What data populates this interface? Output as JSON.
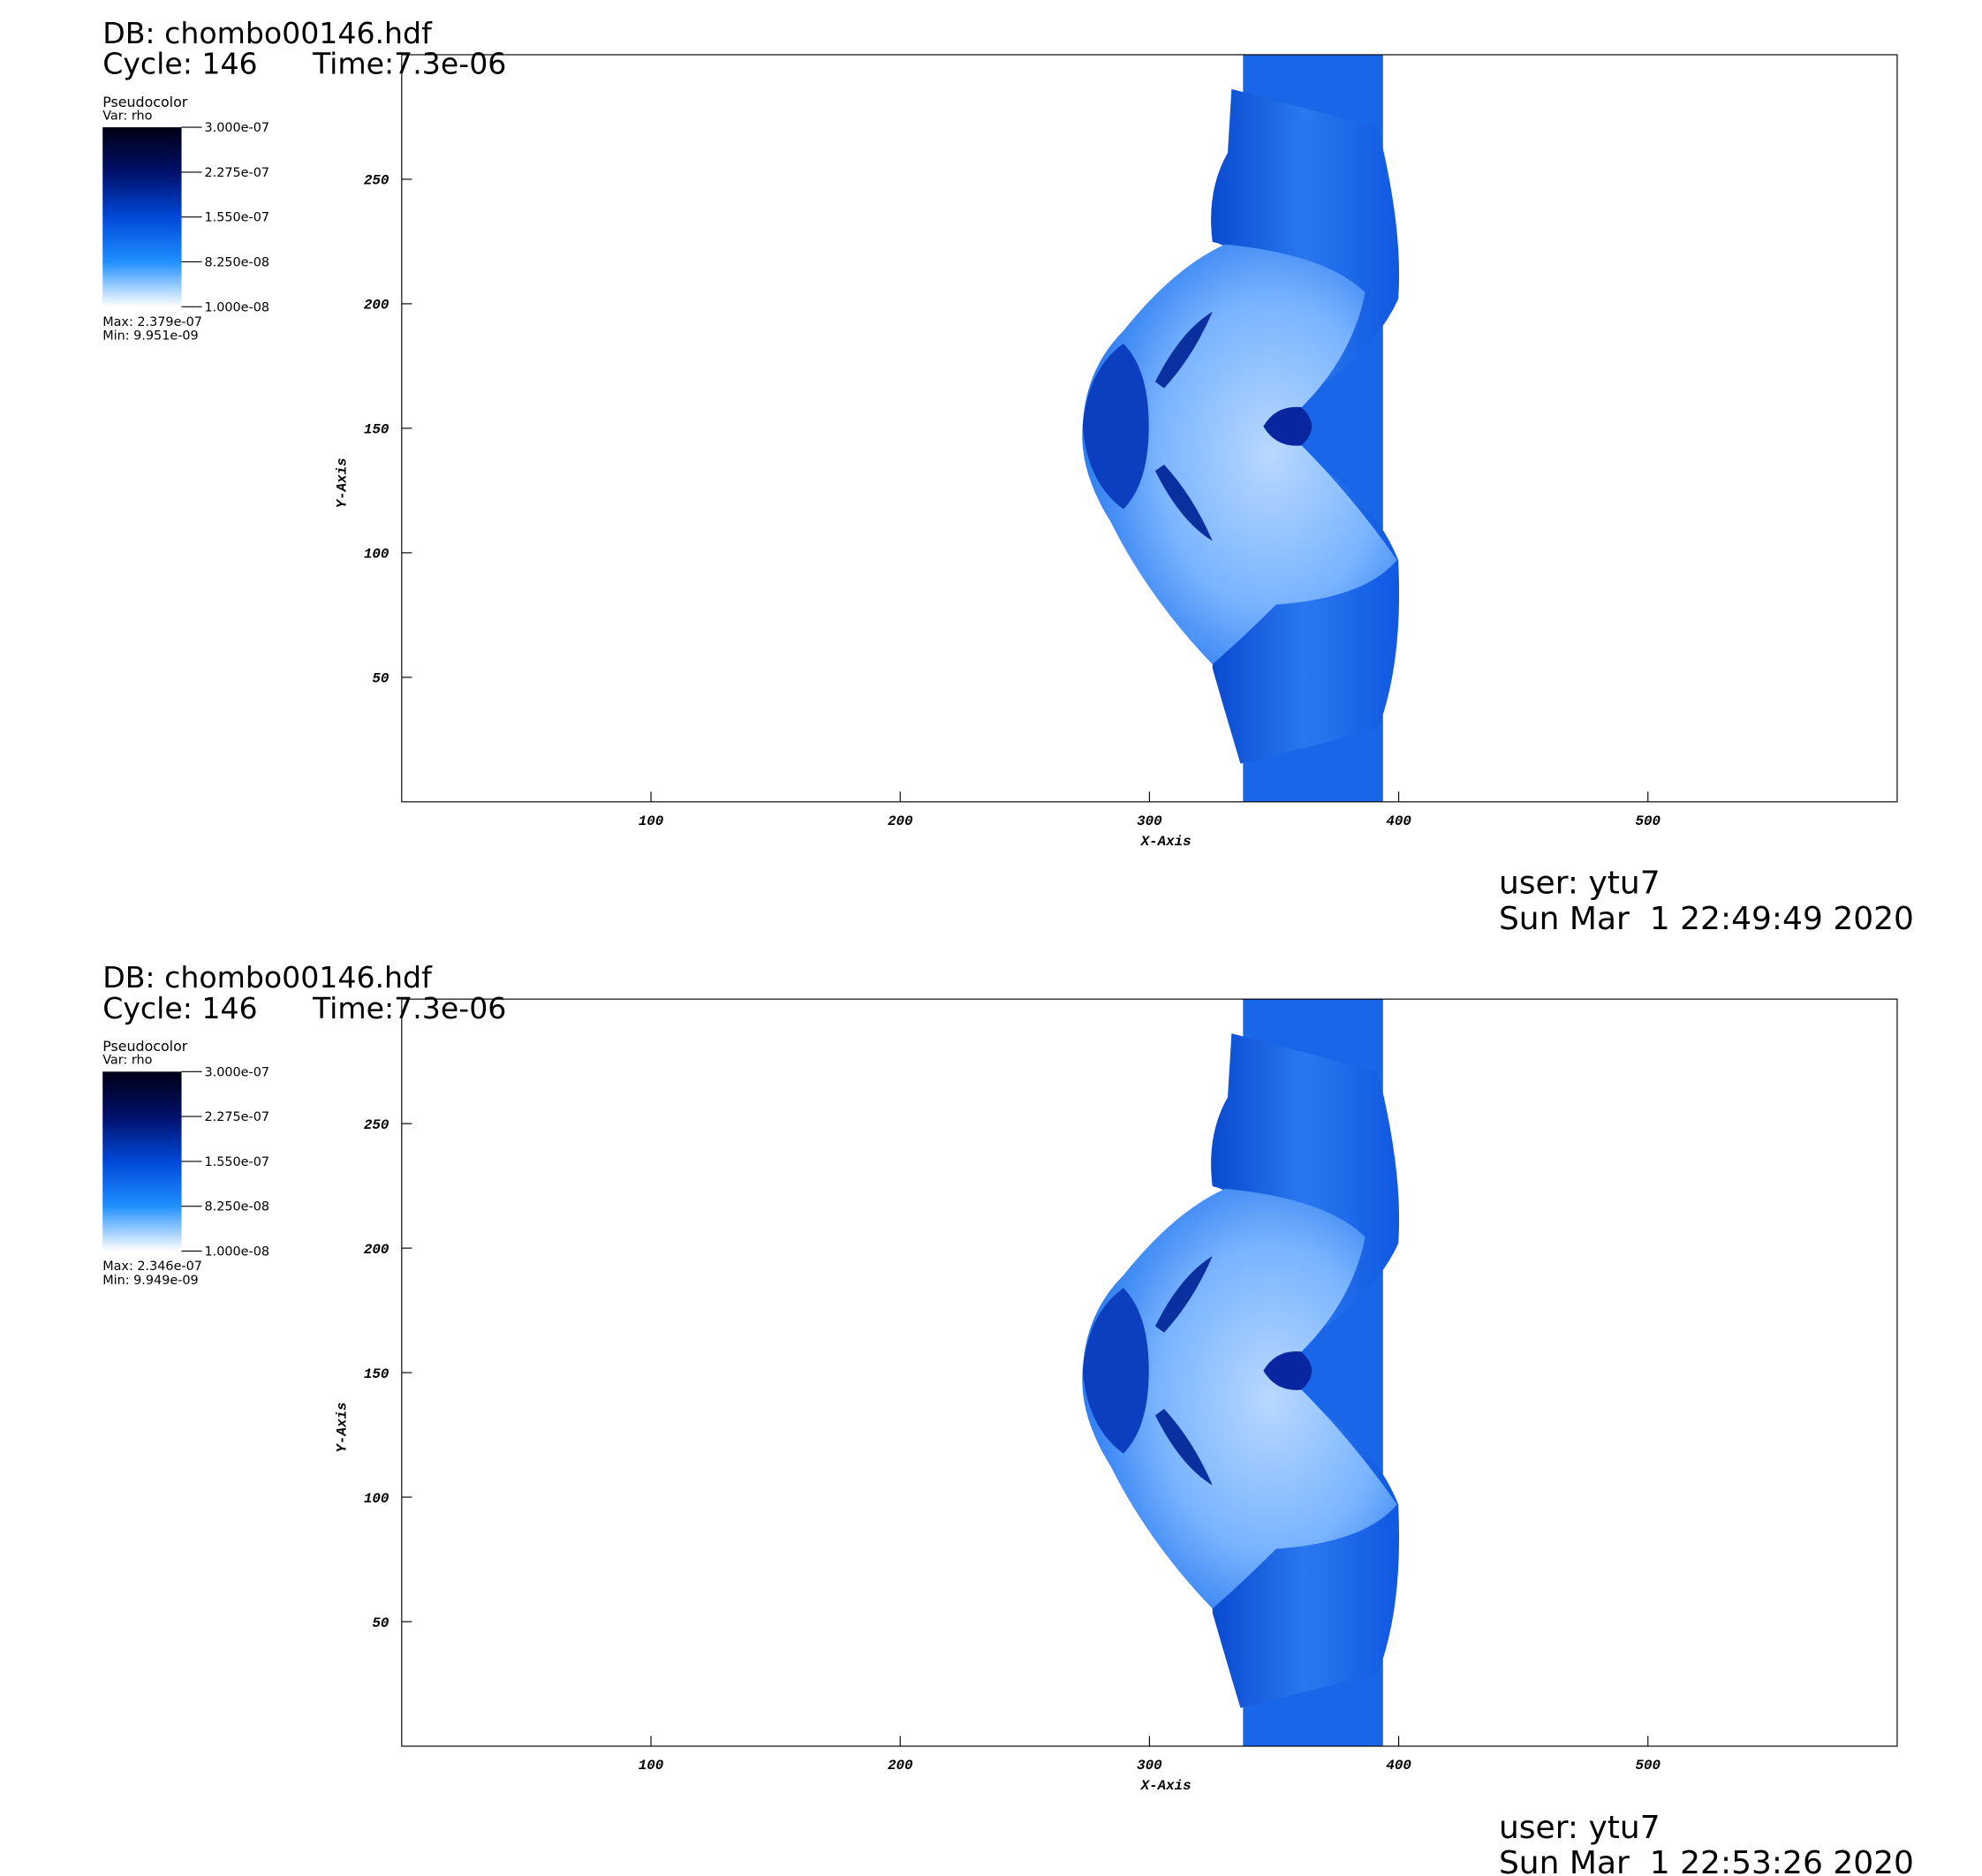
{
  "chart_data": [
    {
      "type": "pseudocolor",
      "title": "DB: chombo00146.hdf",
      "cycle": "Cycle: 146",
      "time": "Time:7.3e-06",
      "legend_title": "Pseudocolor",
      "variable": "Var: rho",
      "max": "Max: 2.379e-07",
      "min": "Min: 9.951e-09",
      "colorbar_lim": [
        1e-08,
        3e-07
      ],
      "colorbar_ticks": [
        {
          "value": 3e-07,
          "label": "3.000e-07"
        },
        {
          "value": 2.275e-07,
          "label": "2.275e-07"
        },
        {
          "value": 1.55e-07,
          "label": "1.550e-07"
        },
        {
          "value": 8.25e-08,
          "label": "8.250e-08"
        },
        {
          "value": 1e-08,
          "label": "1.000e-08"
        }
      ],
      "xlabel": "X-Axis",
      "ylabel": "Y-Axis",
      "xlim": [
        0,
        600
      ],
      "ylim": [
        0,
        300
      ],
      "xticks": [
        100,
        200,
        300,
        400,
        500
      ],
      "yticks": [
        50,
        100,
        150,
        200,
        250
      ],
      "user": "user: ytu7",
      "date": "Sun Mar  1 22:49:49 2020"
    },
    {
      "type": "pseudocolor",
      "title": "DB: chombo00146.hdf",
      "cycle": "Cycle: 146",
      "time": "Time:7.3e-06",
      "legend_title": "Pseudocolor",
      "variable": "Var: rho",
      "max": "Max: 2.346e-07",
      "min": "Min: 9.949e-09",
      "colorbar_lim": [
        1e-08,
        3e-07
      ],
      "colorbar_ticks": [
        {
          "value": 3e-07,
          "label": "3.000e-07"
        },
        {
          "value": 2.275e-07,
          "label": "2.275e-07"
        },
        {
          "value": 1.55e-07,
          "label": "1.550e-07"
        },
        {
          "value": 8.25e-08,
          "label": "8.250e-08"
        },
        {
          "value": 1e-08,
          "label": "1.000e-08"
        }
      ],
      "xlabel": "X-Axis",
      "ylabel": "Y-Axis",
      "xlim": [
        0,
        600
      ],
      "ylim": [
        0,
        300
      ],
      "xticks": [
        100,
        200,
        300,
        400,
        500
      ],
      "yticks": [
        50,
        100,
        150,
        200,
        250
      ],
      "user": "user: ytu7",
      "date": "Sun Mar  1 22:53:26 2020"
    }
  ]
}
